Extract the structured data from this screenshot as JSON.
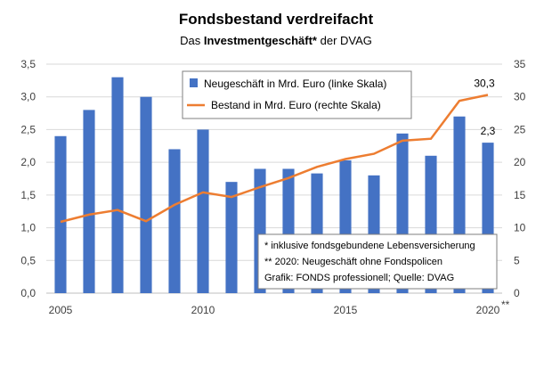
{
  "chart_data": {
    "type": "bar+line",
    "title": "Fondsbestand verdreifacht",
    "subtitle_prefix": "Das ",
    "subtitle_bold": "Investmentgeschäft*",
    "subtitle_suffix": " der DVAG",
    "years": [
      2005,
      2006,
      2007,
      2008,
      2009,
      2010,
      2011,
      2012,
      2013,
      2014,
      2015,
      2016,
      2017,
      2018,
      2019,
      2020
    ],
    "x_tick_labels": [
      "2005",
      "2010",
      "2015",
      "2020"
    ],
    "x_tick_years": [
      2005,
      2010,
      2015,
      2020
    ],
    "x_last_suffix": "**",
    "series": [
      {
        "name": "Neugeschäft in Mrd. Euro (linke Skala)",
        "type": "bar",
        "axis": "left",
        "color": "#4472C4",
        "values": [
          2.4,
          2.8,
          3.3,
          3.0,
          2.2,
          2.5,
          1.7,
          1.9,
          1.9,
          1.83,
          2.03,
          1.8,
          2.44,
          2.1,
          2.7,
          2.3
        ]
      },
      {
        "name": "Bestand in Mrd. Euro (rechte Skala)",
        "type": "line",
        "axis": "right",
        "color": "#ED7D31",
        "values": [
          10.9,
          12.0,
          12.7,
          11.0,
          13.5,
          15.4,
          14.7,
          16.2,
          17.6,
          19.3,
          20.5,
          21.3,
          23.3,
          23.6,
          29.4,
          30.3
        ]
      }
    ],
    "y_left": {
      "min": 0,
      "max": 3.5,
      "ticks": [
        "0,0",
        "0,5",
        "1,0",
        "1,5",
        "2,0",
        "2,5",
        "3,0",
        "3,5"
      ]
    },
    "y_right": {
      "min": 0,
      "max": 35,
      "ticks": [
        "0",
        "5",
        "10",
        "15",
        "20",
        "25",
        "30",
        "35"
      ]
    },
    "data_labels": {
      "bar_last": "2,3",
      "line_last": "30,3"
    },
    "notes": [
      "* inklusive fondsgebundene Lebensversicherung",
      "** 2020:  Neugeschäft ohne Fondspolicen",
      "Grafik: FONDS professionell; Quelle: DVAG"
    ],
    "grid": true,
    "legend_position": "top-center"
  }
}
